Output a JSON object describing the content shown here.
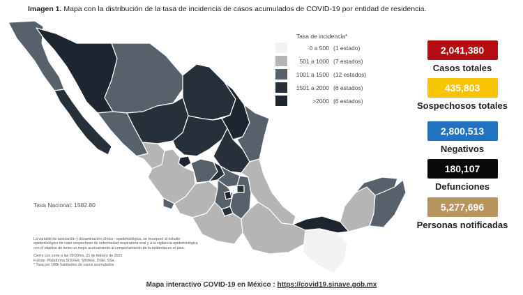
{
  "header": {
    "prefix": "Imagen 1.",
    "text": " Mapa con la distribución de la tasa de incidencia de casos acumulados de COVID-19 por entidad de residencia."
  },
  "legend": {
    "title": "Tasa de incidencia*",
    "rows": [
      {
        "range": "0 a   500",
        "count": "(1 estado)",
        "color": "#f2f2f2"
      },
      {
        "range": "501 a  1000",
        "count": "(7 estados)",
        "color": "#b5b5b5"
      },
      {
        "range": "1001 a  1500",
        "count": "(12 estados)",
        "color": "#56616b"
      },
      {
        "range": "1501 a  2000",
        "count": "(6 estados)",
        "color": "#25303a"
      },
      {
        "range": ">2000",
        "count": "(6 estados)",
        "color": "#1c2530"
      }
    ]
  },
  "stats": [
    {
      "value": "2,041,380",
      "label": "Casos totales",
      "color": "#b50d12"
    },
    {
      "value": "435,803",
      "label": "Sospechosos totales",
      "color": "#f6c400"
    },
    {
      "value": "2,800,513",
      "label": "Negativos",
      "color": "#1f73c2"
    },
    {
      "value": "180,107",
      "label": "Defunciones",
      "color": "#0a0a0a"
    },
    {
      "value": "5,277,696",
      "label": "Personas notificadas",
      "color": "#b8935a"
    }
  ],
  "tasa_nacional": "Tasa Nacional: 1582.80",
  "notes": {
    "line1": "La variable de asociación y dictaminación clínica - epidemiológica, se incorporó al estudio",
    "line2": "epidemiológico de caso sospechoso de enfermedad respiratoria viral y a la vigilancia epidemiológica",
    "line3": "con el objetivo de tener un mejor acercamiento al comportamiento de la epidemia en el país.",
    "line4": "Cierre con corte a las 09:00hrs, 21 de febrero de 2021",
    "line5": "Fuente: Plataforma SISVER, SINAVE, DGE, SSa.",
    "line6": "* Tasa por 100k habitantes de casos acumulados."
  },
  "footer": {
    "label": "Mapa interactivo COVID-19 en México :",
    "link": "https://covid19.sinave.gob.mx"
  },
  "map_colors": {
    "lightest": "#f2f2f2",
    "light": "#b5b5b5",
    "mid": "#56616b",
    "dark": "#25303a",
    "darkest": "#1c2530",
    "border": "#ffffff"
  }
}
